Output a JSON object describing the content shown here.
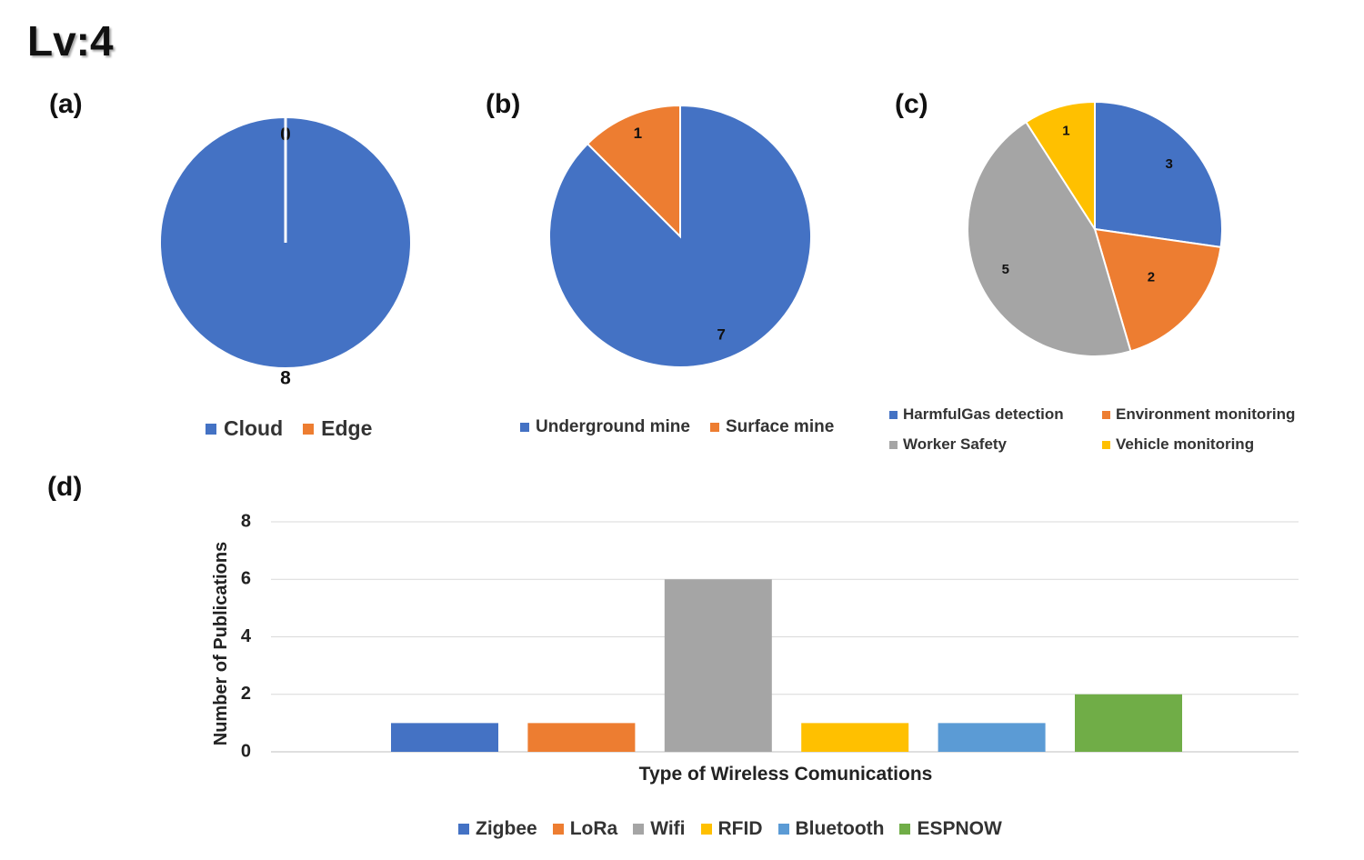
{
  "page_title": "Lv:4",
  "panels": {
    "a": "(a)",
    "b": "(b)",
    "c": "(c)",
    "d": "(d)"
  },
  "chart_data": [
    {
      "id": "a",
      "type": "pie",
      "slices": [
        {
          "label": "Cloud",
          "value": 8,
          "color": "#4472C4"
        },
        {
          "label": "Edge",
          "value": 0,
          "color": "#ED7D31"
        }
      ]
    },
    {
      "id": "b",
      "type": "pie",
      "slices": [
        {
          "label": "Underground mine",
          "value": 7,
          "color": "#4472C4"
        },
        {
          "label": "Surface mine",
          "value": 1,
          "color": "#ED7D31"
        }
      ]
    },
    {
      "id": "c",
      "type": "pie",
      "slices": [
        {
          "label": "HarmfulGas detection",
          "value": 3,
          "color": "#4472C4"
        },
        {
          "label": "Environment monitoring",
          "value": 2,
          "color": "#ED7D31"
        },
        {
          "label": "Worker Safety",
          "value": 5,
          "color": "#A5A5A5"
        },
        {
          "label": "Vehicle monitoring",
          "value": 1,
          "color": "#FFC000"
        }
      ]
    },
    {
      "id": "d",
      "type": "bar",
      "categories": [
        "Zigbee",
        "LoRa",
        "Wifi",
        "RFID",
        "Bluetooth",
        "ESPNOW"
      ],
      "values": [
        1,
        1,
        6,
        1,
        1,
        2
      ],
      "colors": [
        "#4472C4",
        "#ED7D31",
        "#A5A5A5",
        "#FFC000",
        "#5B9BD5",
        "#70AD47"
      ],
      "xlabel": "Type of Wireless Comunications",
      "ylabel": "Number of Publications",
      "ylim": [
        0,
        8
      ],
      "yticks": [
        "0",
        "2",
        "4",
        "6",
        "8"
      ],
      "grid": true,
      "legend": "bottom"
    }
  ]
}
